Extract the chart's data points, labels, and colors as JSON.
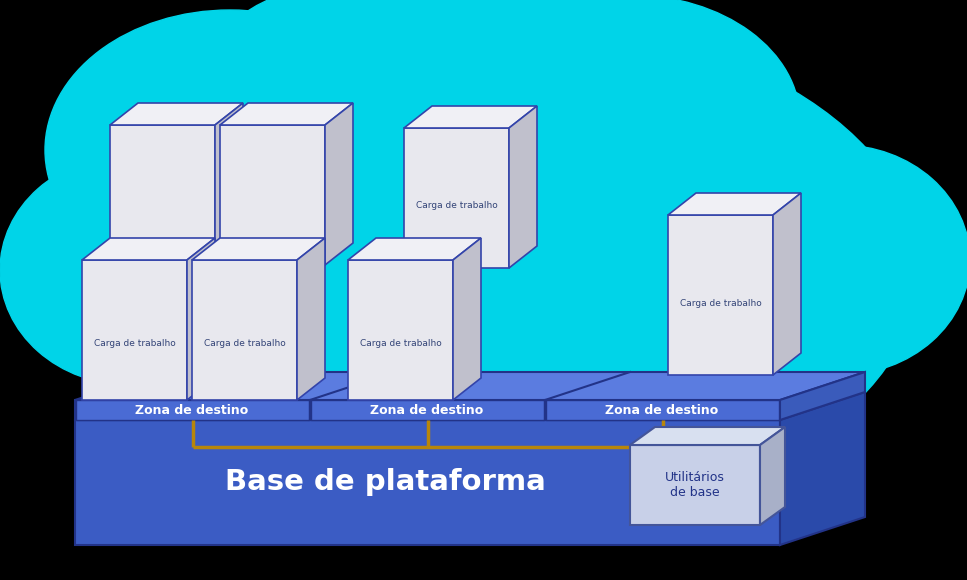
{
  "cloud_color": "#00D4E8",
  "platform_front_color": "#3B5CC4",
  "platform_top_color": "#4A6BD4",
  "platform_right_color": "#2A4AAA",
  "lz_front_color": "#4A6BD4",
  "lz_top_color": "#5B7CE0",
  "lz_right_color": "#3A5BBB",
  "lz_label_bg": "#3A5BC8",
  "cube_front_color": "#E8E8EE",
  "cube_top_color": "#F0F0F5",
  "cube_side_color": "#C0C0CC",
  "cube_border": "#3344AA",
  "util_front_color": "#C8D0E8",
  "util_top_color": "#D8E0F0",
  "util_side_color": "#A8B0C8",
  "util_border": "#445599",
  "gold_color": "#B8860B",
  "white": "#FFFFFF",
  "dark_blue": "#223388",
  "base_text": "Base de plataforma",
  "utility_text_line1": "Utilitários",
  "utility_text_line2": "de base",
  "zone_text": "Zona de destino",
  "workload_text": "Carga de trabalho",
  "figsize": [
    9.67,
    5.8
  ],
  "dpi": 100
}
